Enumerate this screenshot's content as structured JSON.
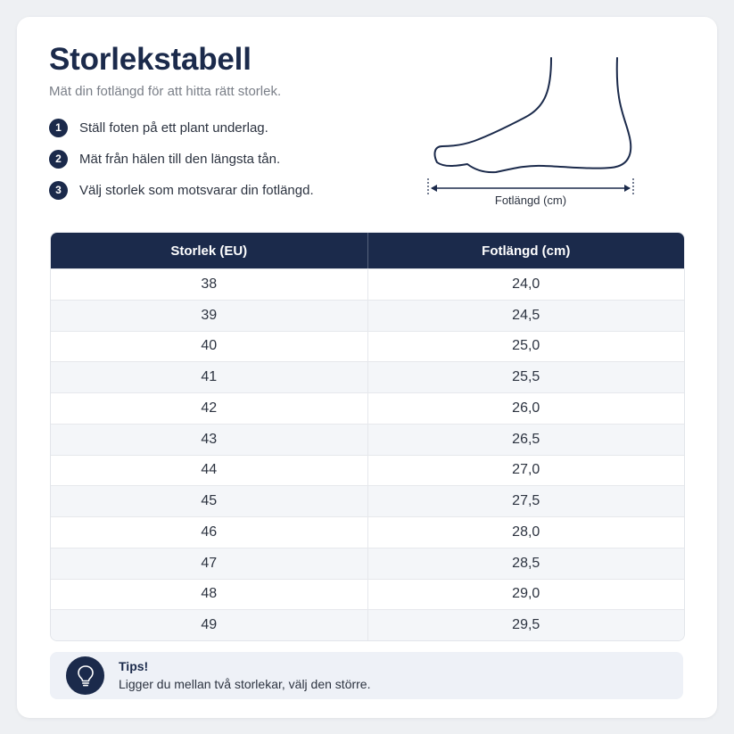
{
  "header": {
    "title": "Storlekstabell",
    "subtitle": "Mät din fotlängd för att hitta rätt storlek."
  },
  "steps": [
    {
      "number": "1",
      "text": "Ställ foten på ett plant underlag."
    },
    {
      "number": "2",
      "text": "Mät från hälen till den längsta tån."
    },
    {
      "number": "3",
      "text": "Välj storlek som motsvarar din fotlängd."
    }
  ],
  "illustration": {
    "icon": "foot-measurement-icon",
    "label": "Fotlängd (cm)"
  },
  "table": {
    "columns": [
      "Storlek (EU)",
      "Fotlängd (cm)"
    ],
    "rows": [
      [
        "38",
        "24,0"
      ],
      [
        "39",
        "24,5"
      ],
      [
        "40",
        "25,0"
      ],
      [
        "41",
        "25,5"
      ],
      [
        "42",
        "26,0"
      ],
      [
        "43",
        "26,5"
      ],
      [
        "44",
        "27,0"
      ],
      [
        "45",
        "27,5"
      ],
      [
        "46",
        "28,0"
      ],
      [
        "47",
        "28,5"
      ],
      [
        "48",
        "29,0"
      ],
      [
        "49",
        "29,5"
      ]
    ]
  },
  "tips": {
    "icon": "lightbulb-icon",
    "title": "Tips!",
    "text": "Ligger du mellan två storlekar, välj den större."
  },
  "colors": {
    "primary": "#1b2a4b",
    "stripe": "#f4f6f9",
    "tips_bg": "#eef1f7",
    "text": "#2c3340",
    "muted": "#7a7f88"
  }
}
